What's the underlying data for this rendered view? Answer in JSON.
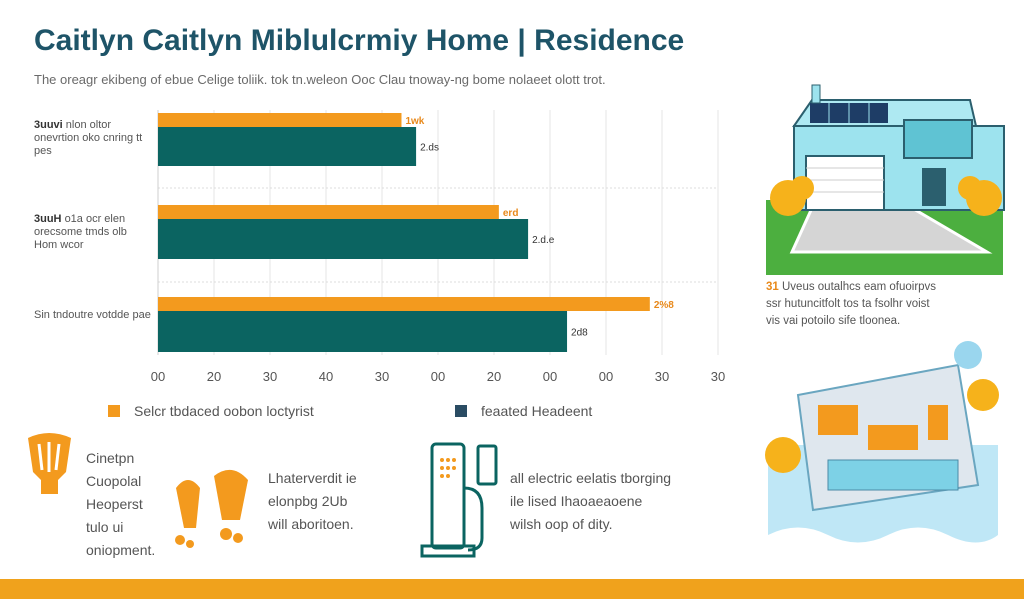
{
  "title": "Caitlyn Caitlyn Miblulcrmiy Home | Residence",
  "subtitle": "The oreagr ekibeng of ebue Celige toliik. tok tn.weleon Ooc Clau tnoway-ng bome nolaeet olott trot.",
  "colors": {
    "accent": "#f39a1e",
    "teal": "#0b6461",
    "navy": "#2a4c63",
    "titleColor": "#1e5468",
    "ground": "#4caf3f"
  },
  "chart_data": {
    "type": "bar",
    "categories": [
      {
        "lead": "3uuvi",
        "text": "nlon oltor onevrtion oko cnring tt pes"
      },
      {
        "lead": "3uuH",
        "text": "o1a ocr elen orecsome tmds olb Hom wcor"
      },
      {
        "lead": "",
        "text": "Sin tndoutre votdde pae"
      }
    ],
    "series": [
      {
        "name": "Selcr tbdaced oobon loctyrist",
        "color": "#f39a1e",
        "values": [
          50,
          70,
          101
        ],
        "labels": [
          "1wk",
          "erd",
          "2%8"
        ]
      },
      {
        "name": "feaated Headeent",
        "color": "#0b6461",
        "values": [
          53,
          76,
          84
        ],
        "labels": [
          "2.ds",
          "2.d.e",
          "2d8"
        ]
      }
    ],
    "xticks": [
      "00",
      "20",
      "30",
      "40",
      "30",
      "00",
      "20",
      "00",
      "00",
      "30",
      "30"
    ],
    "xlim": [
      0,
      115
    ],
    "grid": true,
    "legend": "bottom"
  },
  "side_note": {
    "mark": "31",
    "lines": [
      "Uveus outalhcs eam ofuoirpvs",
      "ssr hutuncitfolt tos ta fsolhr voist",
      "vis vai potoilo sife tloonea."
    ]
  },
  "notes": [
    {
      "lines": [
        "Cinetpn",
        "Cuopolal",
        "Heoperst",
        "tulo ui",
        "oniopment."
      ]
    },
    {
      "lines": [
        "Lhaterverdit ie",
        "elonpbg 2Ub",
        "will aboritoen."
      ]
    },
    {
      "lines": [
        "all electric eelatis tborging",
        "ile lised Ihaoaeaoene",
        "wilsh oop of dity."
      ]
    }
  ]
}
